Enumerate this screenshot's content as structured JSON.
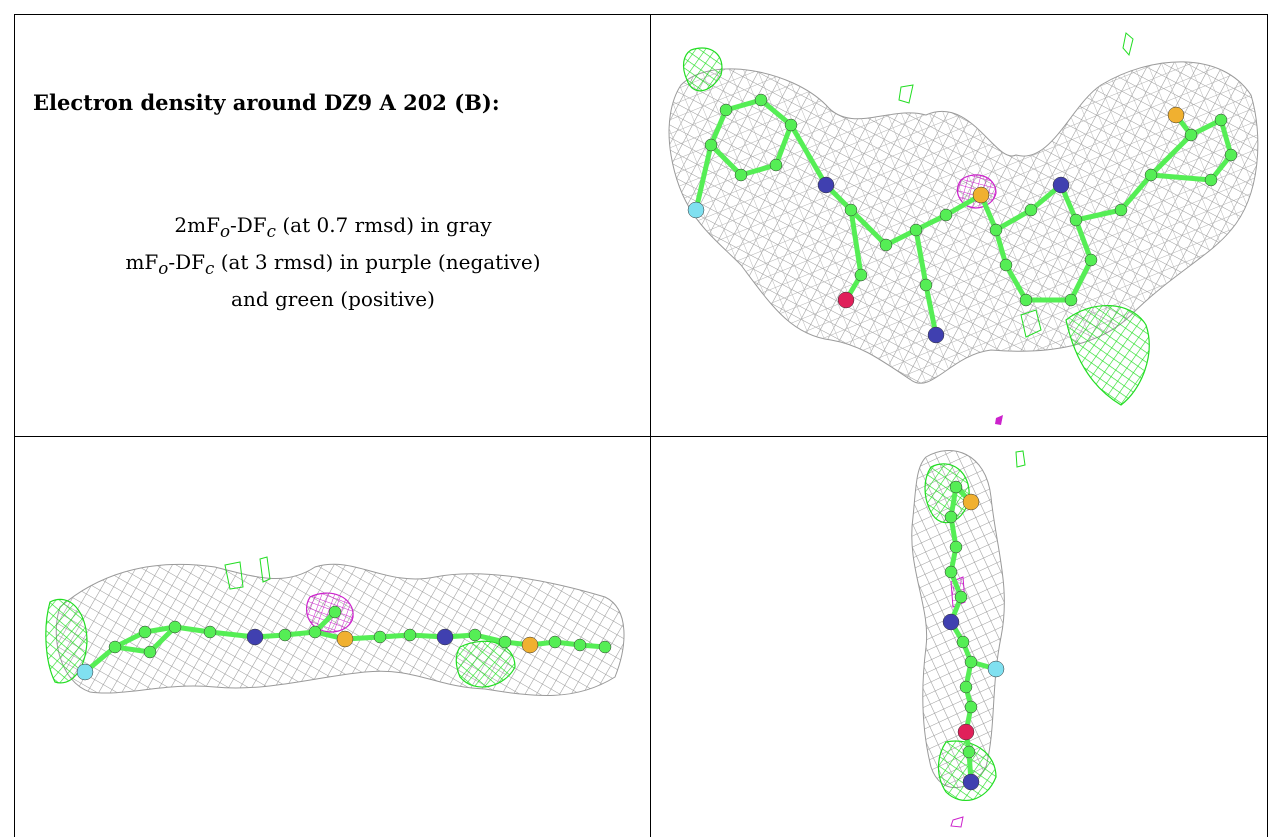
{
  "legend": {
    "title": "Electron density around DZ9 A 202 (B):",
    "line1_prefix": "2mF",
    "line1_sub_o": "o",
    "line1_mid": "-DF",
    "line1_sub_c": "c",
    "line1_suffix": " (at 0.7 rmsd) in gray",
    "line2_prefix": "mF",
    "line2_sub_o": "o",
    "line2_mid": "-DF",
    "line2_sub_c": "c",
    "line2_suffix": " (at 3 rmsd) in purple (negative)",
    "line3": "and green (positive)"
  },
  "colors": {
    "mesh_2fofc": "#9a9a9a",
    "mesh_positive": "#22dd22",
    "mesh_negative": "#cc22cc",
    "carbon": "#55ee55",
    "nitrogen": "#4040b0",
    "oxygen": "#e0205a",
    "sulfur": "#f0b030",
    "fluorine": "#80e0f0"
  },
  "panels": [
    {
      "view": "top",
      "icon": "electron-density-top-view"
    },
    {
      "view": "side",
      "icon": "electron-density-side-view"
    },
    {
      "view": "end",
      "icon": "electron-density-end-view"
    }
  ]
}
